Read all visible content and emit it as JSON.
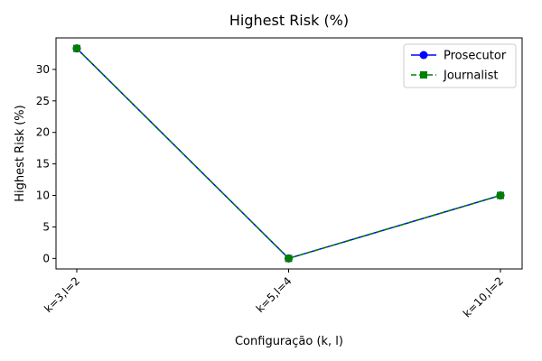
{
  "chart_data": {
    "type": "line",
    "title": "Highest Risk (%)",
    "xlabel": "Configuração (k, l)",
    "ylabel": "Highest Risk (%)",
    "categories": [
      "k=3,l=2",
      "k=5,l=4",
      "k=10,l=2"
    ],
    "yticks": [
      0,
      5,
      10,
      15,
      20,
      25,
      30
    ],
    "ylim": [
      -1.67,
      35.0
    ],
    "grid": false,
    "legend_position": "top-right",
    "series": [
      {
        "name": "Prosecutor",
        "values": [
          33.33,
          0,
          10
        ],
        "color": "#0000ff",
        "marker": "circle",
        "linestyle": "solid"
      },
      {
        "name": "Journalist",
        "values": [
          33.33,
          0,
          10
        ],
        "color": "#008000",
        "marker": "square",
        "linestyle": "dashed"
      }
    ]
  }
}
